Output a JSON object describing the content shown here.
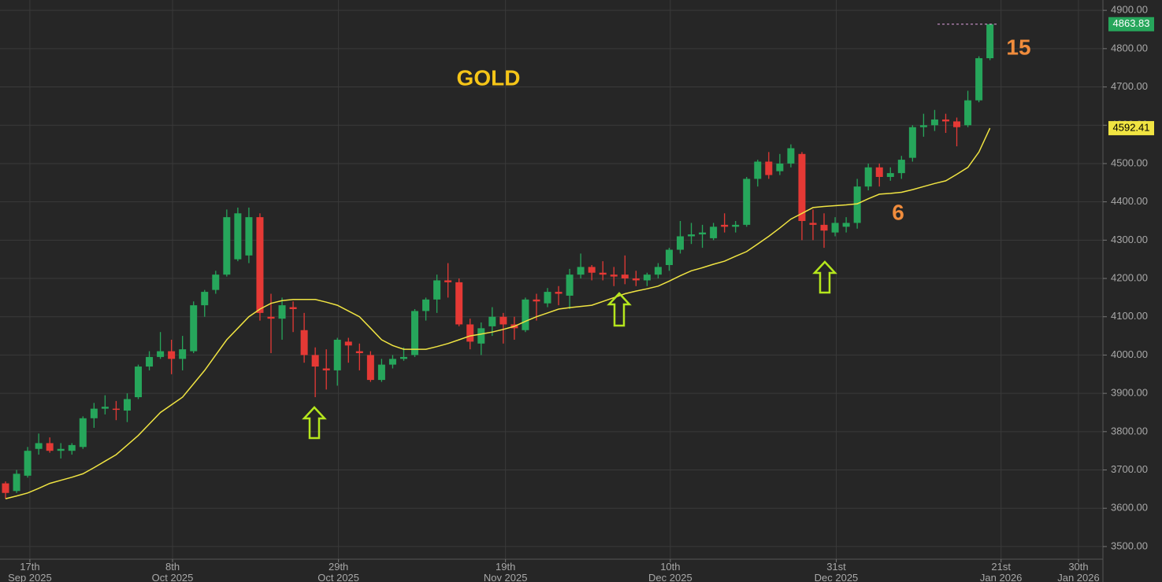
{
  "chart_data": {
    "type": "candlestick",
    "title": "GOLD",
    "annotations": [
      "15",
      "6"
    ],
    "up_color": "#26a65b",
    "down_color": "#e53935",
    "grid": true,
    "xlim": [
      -0.5,
      99.21
    ],
    "xticks": [
      {
        "value": 2.2,
        "label": [
          "17th",
          "Sep 2025"
        ]
      },
      {
        "value": 15.1,
        "label": [
          "8th",
          "Oct 2025"
        ]
      },
      {
        "value": 30.1,
        "label": [
          "29th",
          "Oct 2025"
        ]
      },
      {
        "value": 45.2,
        "label": [
          "19th",
          "Nov 2025"
        ]
      },
      {
        "value": 60.1,
        "label": [
          "10th",
          "Dec 2025"
        ]
      },
      {
        "value": 75.1,
        "label": [
          "31st",
          "Dec 2025"
        ]
      },
      {
        "value": 90.0,
        "label": [
          "21st",
          "Jan 2026"
        ]
      },
      {
        "value": 97.0,
        "label": [
          "30th",
          "Jan 2026"
        ]
      }
    ],
    "ylim": [
      3467,
      4927
    ],
    "yticks": [
      {
        "value": 3500,
        "label": "3500.00"
      },
      {
        "value": 3600,
        "label": "3600.00"
      },
      {
        "value": 3700,
        "label": "3700.00"
      },
      {
        "value": 3800,
        "label": "3800.00"
      },
      {
        "value": 3900,
        "label": "3900.00"
      },
      {
        "value": 4000,
        "label": "4000.00"
      },
      {
        "value": 4100,
        "label": "4100.00"
      },
      {
        "value": 4200,
        "label": "4200.00"
      },
      {
        "value": 4300,
        "label": "4300.00"
      },
      {
        "value": 4400,
        "label": "4400.00"
      },
      {
        "value": 4500,
        "label": "4500.00"
      },
      {
        "value": 4600,
        "label": "4600.00"
      },
      {
        "value": 4700,
        "label": "4700.00"
      },
      {
        "value": 4800,
        "label": "4800.00"
      },
      {
        "value": 4900,
        "label": "4900.00"
      }
    ],
    "open": [
      3665,
      3645,
      3685,
      3755,
      3770,
      3750,
      3750,
      3760,
      3835,
      3860,
      3860,
      3855,
      3890,
      3970,
      3995,
      4010,
      3990,
      4010,
      4130,
      4170,
      4210,
      4250,
      4260,
      4360,
      4100,
      4095,
      4125,
      4065,
      4000,
      3965,
      3960,
      4035,
      4010,
      4000,
      3935,
      3975,
      3990,
      4000,
      4115,
      4145,
      4195,
      4190,
      4080,
      4030,
      4075,
      4100,
      4080,
      4065,
      4145,
      4135,
      4165,
      4155,
      4210,
      4230,
      4215,
      4210,
      4210,
      4200,
      4195,
      4210,
      4235,
      4275,
      4310,
      4315,
      4305,
      4340,
      4335,
      4340,
      4460,
      4505,
      4480,
      4500,
      4525,
      4345,
      4340,
      4320,
      4335,
      4345,
      4440,
      4490,
      4465,
      4475,
      4515,
      4595,
      4600,
      4615,
      4610,
      4600,
      4665,
      4775
    ],
    "high": [
      3670,
      3700,
      3760,
      3795,
      3785,
      3770,
      3770,
      3840,
      3875,
      3895,
      3880,
      3900,
      3975,
      4010,
      4060,
      4040,
      4050,
      4140,
      4170,
      4220,
      4380,
      4385,
      4385,
      4370,
      4160,
      4150,
      4140,
      4110,
      4020,
      4015,
      4045,
      4045,
      4030,
      4010,
      3990,
      4000,
      4020,
      4120,
      4150,
      4210,
      4240,
      4200,
      4095,
      4085,
      4125,
      4110,
      4100,
      4150,
      4160,
      4175,
      4180,
      4225,
      4265,
      4235,
      4245,
      4230,
      4260,
      4220,
      4215,
      4240,
      4280,
      4350,
      4345,
      4340,
      4345,
      4370,
      4350,
      4465,
      4510,
      4530,
      4525,
      4550,
      4530,
      4380,
      4370,
      4360,
      4360,
      4460,
      4500,
      4500,
      4490,
      4520,
      4600,
      4630,
      4640,
      4630,
      4620,
      4690,
      4780,
      4865
    ],
    "low": [
      3625,
      3640,
      3680,
      3740,
      3745,
      3730,
      3740,
      3755,
      3810,
      3845,
      3830,
      3825,
      3885,
      3960,
      3990,
      3950,
      3960,
      4005,
      4100,
      4160,
      4205,
      4245,
      4240,
      4090,
      4005,
      4040,
      4060,
      3980,
      3890,
      3910,
      3920,
      3980,
      3960,
      3930,
      3930,
      3965,
      3985,
      3995,
      4090,
      4110,
      4150,
      4075,
      4015,
      4000,
      4050,
      4030,
      4040,
      4060,
      4090,
      4125,
      4130,
      4120,
      4200,
      4195,
      4195,
      4180,
      4185,
      4180,
      4180,
      4200,
      4220,
      4265,
      4290,
      4280,
      4300,
      4320,
      4320,
      4335,
      4440,
      4460,
      4470,
      4490,
      4300,
      4300,
      4280,
      4310,
      4320,
      4330,
      4430,
      4440,
      4455,
      4460,
      4505,
      4570,
      4585,
      4580,
      4545,
      4595,
      4660,
      4770
    ],
    "close": [
      3640,
      3690,
      3750,
      3770,
      3750,
      3755,
      3765,
      3835,
      3860,
      3865,
      3858,
      3885,
      3970,
      3995,
      4010,
      3990,
      4015,
      4130,
      4165,
      4210,
      4360,
      4370,
      4360,
      4110,
      4095,
      4130,
      4120,
      4000,
      3970,
      3960,
      4040,
      4025,
      4005,
      3935,
      3975,
      3990,
      3995,
      4115,
      4145,
      4195,
      4190,
      4080,
      4035,
      4070,
      4100,
      4080,
      4070,
      4145,
      4140,
      4165,
      4160,
      4210,
      4230,
      4215,
      4210,
      4205,
      4200,
      4195,
      4210,
      4230,
      4275,
      4310,
      4315,
      4320,
      4335,
      4335,
      4340,
      4460,
      4505,
      4470,
      4500,
      4540,
      4350,
      4340,
      4325,
      4345,
      4345,
      4440,
      4490,
      4465,
      4475,
      4510,
      4595,
      4600,
      4615,
      4610,
      4595,
      4665,
      4775,
      4863.83
    ],
    "ma": {
      "color": "#f0e442",
      "values": [
        3625,
        3632,
        3640,
        3652,
        3665,
        3673,
        3681,
        3690,
        3706,
        3723,
        3740,
        3765,
        3790,
        3820,
        3850,
        3870,
        3890,
        3925,
        3960,
        4000,
        4040,
        4070,
        4100,
        4120,
        4135,
        4142,
        4145,
        4145,
        4145,
        4138,
        4130,
        4115,
        4100,
        4070,
        4040,
        4025,
        4015,
        4015,
        4015,
        4022,
        4030,
        4040,
        4050,
        4055,
        4060,
        4067,
        4075,
        4088,
        4100,
        4110,
        4120,
        4124,
        4127,
        4130,
        4140,
        4150,
        4160,
        4167,
        4173,
        4180,
        4193,
        4207,
        4220,
        4228,
        4237,
        4245,
        4258,
        4270,
        4290,
        4310,
        4332,
        4355,
        4370,
        4385,
        4388,
        4390,
        4392,
        4395,
        4408,
        4420,
        4422,
        4425,
        4432,
        4440,
        4448,
        4455,
        4472,
        4490,
        4530,
        4592.41
      ]
    }
  }
}
